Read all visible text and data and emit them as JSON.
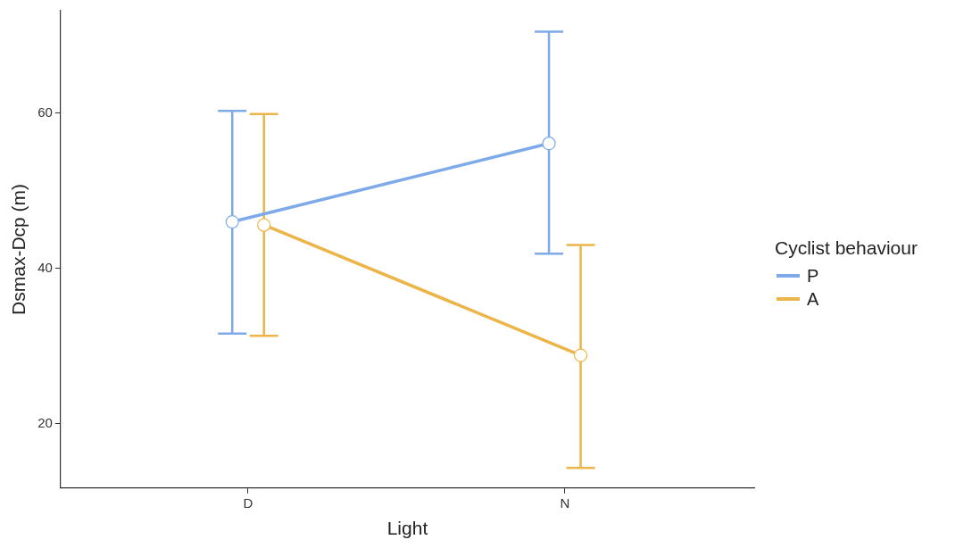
{
  "chart_data": {
    "type": "line",
    "xlabel": "Light",
    "ylabel": "Dsmax-Dcp (m)",
    "legend_title": "Cyclist behaviour",
    "legend": "right",
    "grid": false,
    "marker": "circle",
    "categories": [
      "D",
      "N"
    ],
    "ylim": [
      11.7,
      73.2
    ],
    "yticks": [
      20,
      40,
      60
    ],
    "series": [
      {
        "name": "P",
        "color": "#7eaaea",
        "values": [
          46.0,
          56.1
        ],
        "errors": [
          [
            31.6,
            60.3
          ],
          [
            41.9,
            70.5
          ]
        ]
      },
      {
        "name": "A",
        "color": "#ecb54a",
        "values": [
          45.6,
          28.8
        ],
        "errors": [
          [
            31.3,
            59.9
          ],
          [
            14.3,
            43.0
          ]
        ]
      }
    ]
  }
}
